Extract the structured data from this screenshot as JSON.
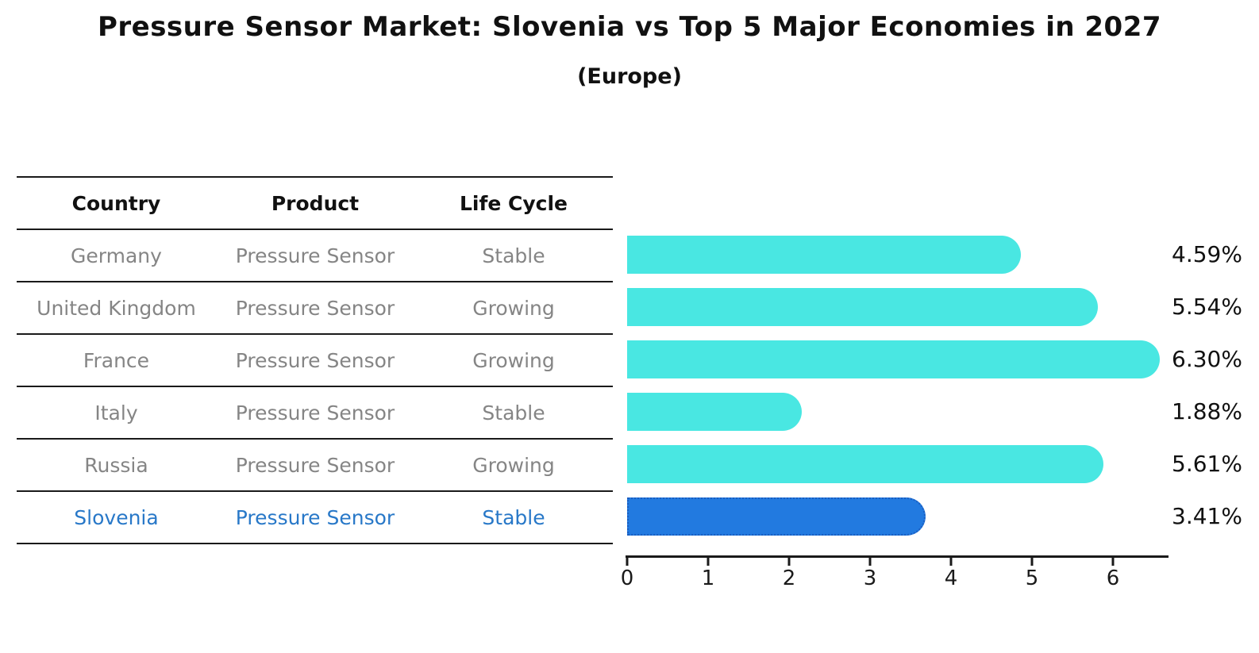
{
  "title": "Pressure Sensor Market: Slovenia vs Top 5 Major Economies in 2027",
  "subtitle": "(Europe)",
  "table": {
    "headers": [
      "Country",
      "Product",
      "Life Cycle"
    ],
    "rows": [
      {
        "country": "Germany",
        "product": "Pressure Sensor",
        "life_cycle": "Stable"
      },
      {
        "country": "United Kingdom",
        "product": "Pressure Sensor",
        "life_cycle": "Growing"
      },
      {
        "country": "France",
        "product": "Pressure Sensor",
        "life_cycle": "Growing"
      },
      {
        "country": "Italy",
        "product": "Pressure Sensor",
        "life_cycle": "Stable"
      },
      {
        "country": "Russia",
        "product": "Pressure Sensor",
        "life_cycle": "Growing"
      },
      {
        "country": "Slovenia",
        "product": "Pressure Sensor",
        "life_cycle": "Stable"
      }
    ],
    "highlight_row": "Slovenia"
  },
  "chart_data": {
    "type": "bar",
    "orientation": "horizontal",
    "categories": [
      "Germany",
      "United Kingdom",
      "France",
      "Italy",
      "Russia",
      "Slovenia"
    ],
    "values": [
      4.59,
      5.54,
      6.3,
      1.88,
      5.61,
      3.41
    ],
    "value_labels": [
      "4.59%",
      "5.54%",
      "6.30%",
      "1.88%",
      "5.61%",
      "3.41%"
    ],
    "x_tick_labels": [
      "0",
      "1",
      "2",
      "3",
      "4",
      "5",
      "6"
    ],
    "xlim": [
      0,
      6.65
    ],
    "grid": false,
    "legend": false,
    "highlight_index": 5,
    "colors": {
      "bar": "#49e7e2",
      "highlight_bar": "#227ae0",
      "highlight_bar_border": "#1a5dc0",
      "table_text_gray": "#858585",
      "highlight_text_blue": "#2878c8",
      "axis": "#1a1a1a"
    }
  }
}
